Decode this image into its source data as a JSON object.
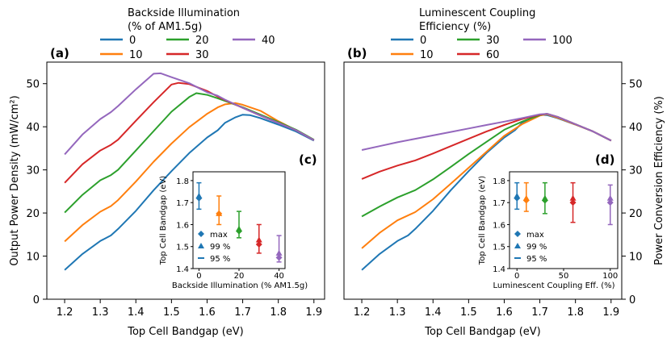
{
  "chart_data": [
    {
      "type": "line",
      "panel_label": "(a)",
      "xlabel": "Top Cell Bandgap (eV)",
      "ylabel": "Output Power Density (mW/cm²)",
      "xlim": [
        1.15,
        1.93
      ],
      "ylim": [
        0,
        55
      ],
      "xticks": [
        "1.2",
        "1.3",
        "1.4",
        "1.5",
        "1.6",
        "1.7",
        "1.8",
        "1.9"
      ],
      "yticks": [
        "0",
        "10",
        "20",
        "30",
        "40",
        "50"
      ],
      "legend_title": "Backside Illumination\n(% of AM1.5g)",
      "series": [
        {
          "name": "0",
          "color": "#1f77b4",
          "x": [
            1.2,
            1.25,
            1.3,
            1.33,
            1.35,
            1.4,
            1.45,
            1.5,
            1.55,
            1.6,
            1.63,
            1.65,
            1.68,
            1.7,
            1.72,
            1.75,
            1.8,
            1.85,
            1.9
          ],
          "y": [
            6.8,
            10.5,
            13.5,
            14.8,
            16.3,
            20.5,
            25.3,
            29.7,
            33.9,
            37.5,
            39.2,
            40.9,
            42.2,
            42.8,
            42.7,
            42.0,
            40.5,
            38.9,
            36.8
          ]
        },
        {
          "name": "10",
          "color": "#ff7f0e",
          "x": [
            1.2,
            1.25,
            1.3,
            1.33,
            1.35,
            1.4,
            1.45,
            1.5,
            1.55,
            1.6,
            1.63,
            1.65,
            1.68,
            1.7,
            1.75,
            1.8,
            1.85,
            1.9
          ],
          "y": [
            13.4,
            17.2,
            20.3,
            21.6,
            23.0,
            27.3,
            31.9,
            36.1,
            39.9,
            43.0,
            44.5,
            45.2,
            45.5,
            45.1,
            43.7,
            41.3,
            39.2,
            36.9
          ]
        },
        {
          "name": "20",
          "color": "#2ca02c",
          "x": [
            1.2,
            1.25,
            1.3,
            1.33,
            1.35,
            1.4,
            1.45,
            1.5,
            1.55,
            1.57,
            1.6,
            1.63,
            1.65,
            1.7,
            1.75,
            1.8,
            1.85,
            1.9
          ],
          "y": [
            20.1,
            24.2,
            27.6,
            28.8,
            30.0,
            34.5,
            39.0,
            43.5,
            46.9,
            47.8,
            47.4,
            46.6,
            46.0,
            44.5,
            42.8,
            41.1,
            39.3,
            37.0
          ]
        },
        {
          "name": "30",
          "color": "#d62728",
          "x": [
            1.2,
            1.25,
            1.3,
            1.33,
            1.35,
            1.4,
            1.45,
            1.5,
            1.52,
            1.55,
            1.6,
            1.63,
            1.65,
            1.7,
            1.75,
            1.8,
            1.85,
            1.9
          ],
          "y": [
            27.0,
            31.3,
            34.5,
            35.8,
            37.0,
            41.4,
            45.7,
            49.8,
            50.2,
            49.9,
            48.3,
            47.0,
            46.2,
            44.4,
            42.6,
            40.9,
            39.2,
            36.9
          ]
        },
        {
          "name": "40",
          "color": "#9467bd",
          "x": [
            1.2,
            1.25,
            1.3,
            1.33,
            1.35,
            1.4,
            1.45,
            1.47,
            1.5,
            1.55,
            1.6,
            1.63,
            1.65,
            1.7,
            1.75,
            1.8,
            1.85,
            1.9
          ],
          "y": [
            33.6,
            38.2,
            41.8,
            43.4,
            44.8,
            48.7,
            52.3,
            52.4,
            51.5,
            50.1,
            48.0,
            47.2,
            46.3,
            44.4,
            42.6,
            40.9,
            39.2,
            36.9
          ]
        }
      ]
    },
    {
      "type": "line",
      "panel_label": "(b)",
      "xlabel": "Top Cell Bandgap (eV)",
      "ylabel": "Power Conversion Efficiency (%)",
      "xlim": [
        1.15,
        1.93
      ],
      "ylim": [
        0,
        55
      ],
      "xticks": [
        "1.2",
        "1.3",
        "1.4",
        "1.5",
        "1.6",
        "1.7",
        "1.8",
        "1.9"
      ],
      "yticks": [
        "0",
        "10",
        "20",
        "30",
        "40",
        "50"
      ],
      "legend_title": "Luminescent Coupling\nEfficiency (%)",
      "series": [
        {
          "name": "0",
          "color": "#1f77b4",
          "x": [
            1.2,
            1.25,
            1.3,
            1.33,
            1.35,
            1.4,
            1.45,
            1.5,
            1.55,
            1.6,
            1.63,
            1.65,
            1.68,
            1.7,
            1.72,
            1.75,
            1.8,
            1.85,
            1.9
          ],
          "y": [
            6.8,
            10.5,
            13.5,
            14.8,
            16.3,
            20.5,
            25.3,
            29.7,
            33.9,
            37.5,
            39.2,
            40.9,
            42.2,
            42.8,
            42.7,
            42.0,
            40.5,
            38.9,
            36.8
          ]
        },
        {
          "name": "10",
          "color": "#ff7f0e",
          "x": [
            1.2,
            1.25,
            1.3,
            1.35,
            1.4,
            1.45,
            1.5,
            1.55,
            1.6,
            1.65,
            1.7,
            1.72,
            1.75,
            1.8,
            1.85,
            1.9
          ],
          "y": [
            11.8,
            15.4,
            18.3,
            20.2,
            23.2,
            26.8,
            30.5,
            34.2,
            37.9,
            40.6,
            42.6,
            42.9,
            42.1,
            40.5,
            38.9,
            36.8
          ]
        },
        {
          "name": "30",
          "color": "#2ca02c",
          "x": [
            1.2,
            1.25,
            1.3,
            1.35,
            1.4,
            1.45,
            1.5,
            1.55,
            1.6,
            1.65,
            1.7,
            1.72,
            1.75,
            1.8,
            1.85,
            1.9
          ],
          "y": [
            19.2,
            21.5,
            23.6,
            25.3,
            27.8,
            30.7,
            33.7,
            36.5,
            39.3,
            41.2,
            42.7,
            43.0,
            42.3,
            40.6,
            38.9,
            36.8
          ]
        },
        {
          "name": "60",
          "color": "#d62728",
          "x": [
            1.2,
            1.25,
            1.3,
            1.35,
            1.4,
            1.45,
            1.5,
            1.55,
            1.6,
            1.65,
            1.7,
            1.72,
            1.75,
            1.8,
            1.85,
            1.9
          ],
          "y": [
            27.9,
            29.6,
            31.0,
            32.2,
            33.8,
            35.5,
            37.2,
            38.9,
            40.4,
            41.8,
            42.8,
            43.0,
            42.3,
            40.6,
            38.9,
            36.8
          ]
        },
        {
          "name": "100",
          "color": "#9467bd",
          "x": [
            1.2,
            1.25,
            1.3,
            1.35,
            1.4,
            1.45,
            1.5,
            1.55,
            1.6,
            1.65,
            1.7,
            1.72,
            1.75,
            1.8,
            1.85,
            1.9
          ],
          "y": [
            34.6,
            35.5,
            36.4,
            37.2,
            38.0,
            38.8,
            39.6,
            40.4,
            41.2,
            42.0,
            42.9,
            43.0,
            42.3,
            40.6,
            38.9,
            36.8
          ]
        }
      ]
    },
    {
      "type": "scatter",
      "panel_label": "(c)",
      "xlabel": "Backside Illumination (% AM1.5g)",
      "ylabel": "Top Cell Bandgap (eV)",
      "xlim": [
        -3,
        43
      ],
      "ylim": [
        1.4,
        1.84
      ],
      "xticks": [
        "0",
        "20",
        "40"
      ],
      "yticks": [
        "1.4",
        "1.5",
        "1.6",
        "1.7",
        "1.8"
      ],
      "legend": [
        "max",
        "99 %",
        "95 %"
      ],
      "points": [
        {
          "x": 0,
          "color": "#1f77b4",
          "max": 1.72,
          "p99": 1.73,
          "lo95": 1.67,
          "hi95": 1.79
        },
        {
          "x": 10,
          "color": "#ff7f0e",
          "max": 1.65,
          "p99": 1.65,
          "lo95": 1.6,
          "hi95": 1.73
        },
        {
          "x": 20,
          "color": "#2ca02c",
          "max": 1.57,
          "p99": 1.58,
          "lo95": 1.54,
          "hi95": 1.66
        },
        {
          "x": 30,
          "color": "#d62728",
          "max": 1.51,
          "p99": 1.53,
          "lo95": 1.47,
          "hi95": 1.6
        },
        {
          "x": 40,
          "color": "#9467bd",
          "max": 1.45,
          "p99": 1.47,
          "lo95": 1.43,
          "hi95": 1.55
        }
      ]
    },
    {
      "type": "scatter",
      "panel_label": "(d)",
      "xlabel": "Luminescent Coupling Eff. (%)",
      "ylabel": "Top Cell Bandgap (eV)",
      "xlim": [
        -8,
        108
      ],
      "ylim": [
        1.4,
        1.84
      ],
      "xticks": [
        "0",
        "50",
        "100"
      ],
      "yticks": [
        "1.4",
        "1.5",
        "1.6",
        "1.7",
        "1.8"
      ],
      "legend": [
        "max",
        "99 %",
        "95 %"
      ],
      "points": [
        {
          "x": 0,
          "color": "#1f77b4",
          "max": 1.72,
          "p99": 1.73,
          "lo95": 1.67,
          "hi95": 1.79
        },
        {
          "x": 10,
          "color": "#ff7f0e",
          "max": 1.71,
          "p99": 1.72,
          "lo95": 1.66,
          "hi95": 1.79
        },
        {
          "x": 30,
          "color": "#2ca02c",
          "max": 1.71,
          "p99": 1.72,
          "lo95": 1.65,
          "hi95": 1.79
        },
        {
          "x": 60,
          "color": "#d62728",
          "max": 1.7,
          "p99": 1.72,
          "lo95": 1.61,
          "hi95": 1.79
        },
        {
          "x": 100,
          "color": "#9467bd",
          "max": 1.7,
          "p99": 1.72,
          "lo95": 1.6,
          "hi95": 1.78
        }
      ]
    }
  ]
}
